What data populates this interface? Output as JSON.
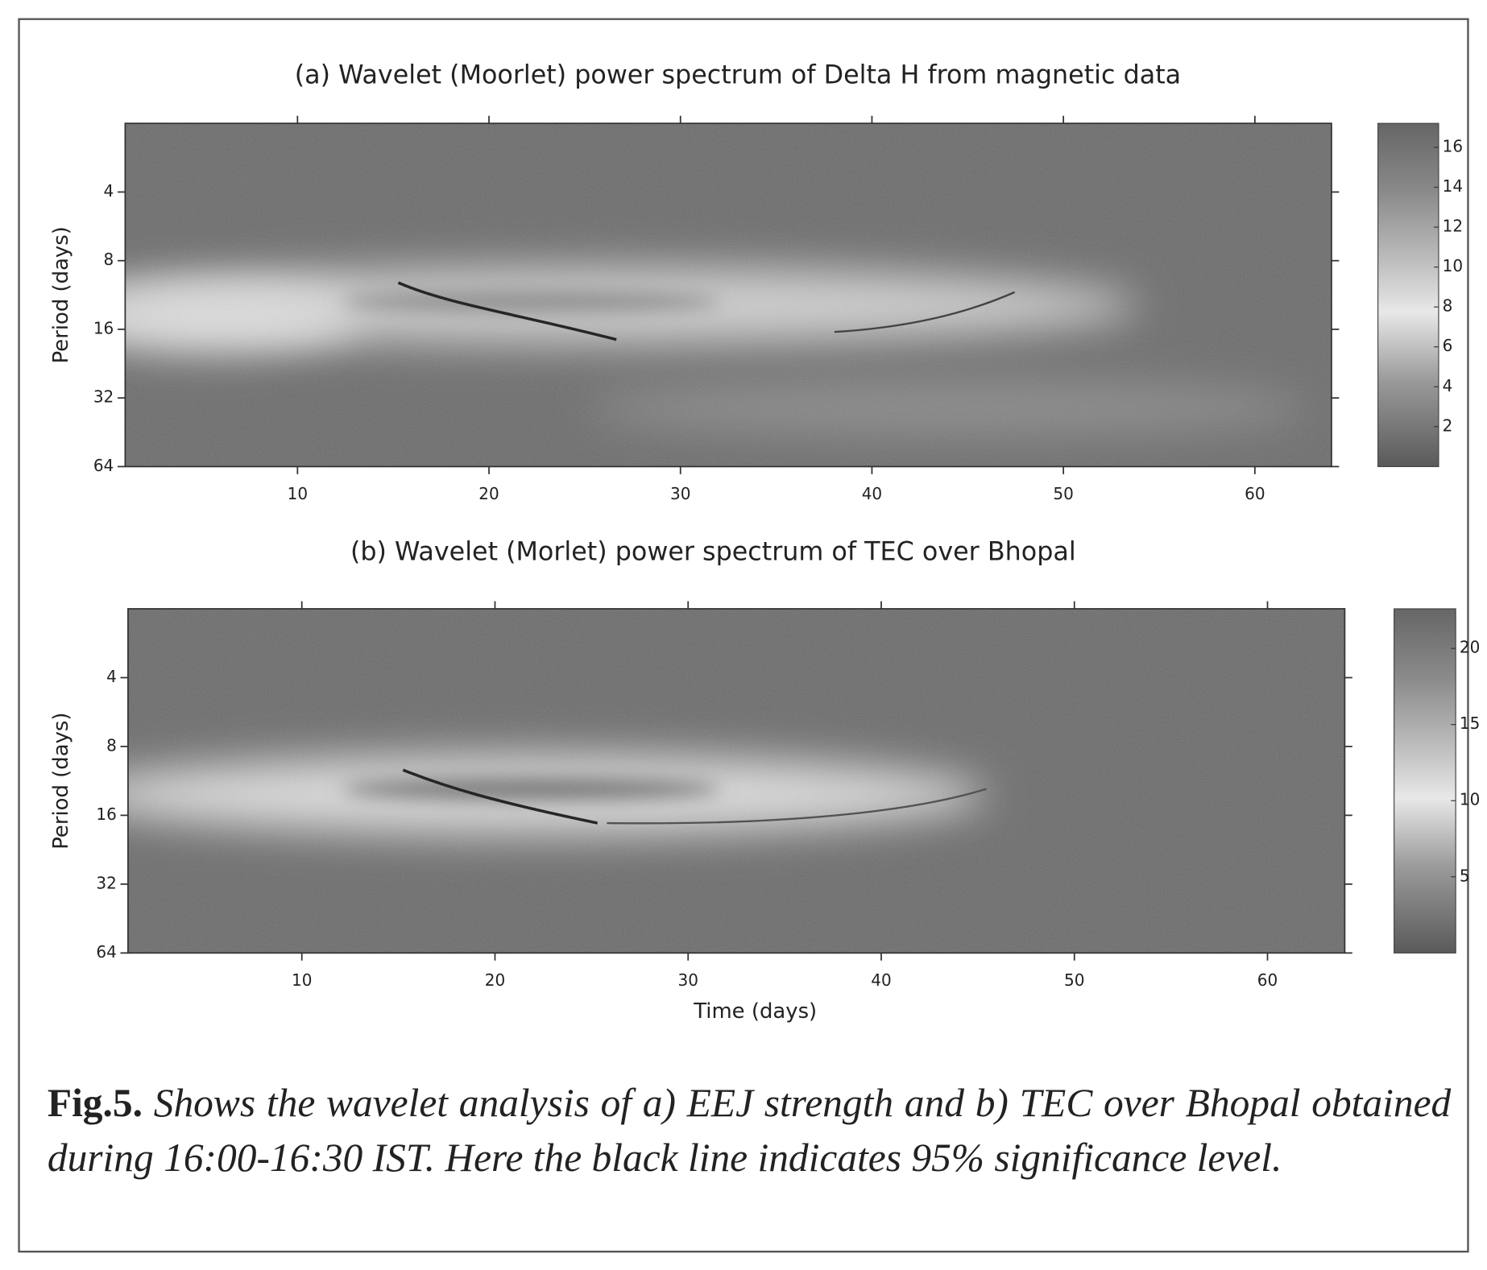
{
  "chart_data": [
    {
      "type": "heatmap",
      "title": "(a) Wavelet (Moorlet) power spectrum of Delta H from magnetic data",
      "ylabel": "Period (days)",
      "xlim": [
        1,
        64
      ],
      "xticks": [
        10,
        20,
        30,
        40,
        50,
        60
      ],
      "ylim": [
        64,
        2
      ],
      "yticks": [
        4,
        8,
        16,
        32,
        64
      ],
      "y_scale": "log2",
      "colorbar": {
        "lim": [
          0,
          17.2
        ],
        "ticks": [
          2,
          4,
          6,
          8,
          10,
          12,
          14,
          16
        ]
      }
    },
    {
      "type": "heatmap",
      "title": "(b) Wavelet (Morlet) power spectrum of TEC over Bhopal",
      "xlabel": "Time (days)",
      "ylabel": "Period (days)",
      "xlim": [
        1,
        64
      ],
      "xticks": [
        10,
        20,
        30,
        40,
        50,
        60
      ],
      "ylim": [
        64,
        2
      ],
      "yticks": [
        4,
        8,
        16,
        32,
        64
      ],
      "y_scale": "log2",
      "colorbar": {
        "lim": [
          0,
          22.6
        ],
        "ticks": [
          5,
          10,
          15,
          20
        ]
      }
    }
  ],
  "caption": {
    "label": "Fig.5.",
    "text": "Shows the wavelet analysis of a) EEJ strength and b) TEC over Bhopal obtained during 16:00-16:30 IST. Here the black line indicates 95% significance level."
  }
}
